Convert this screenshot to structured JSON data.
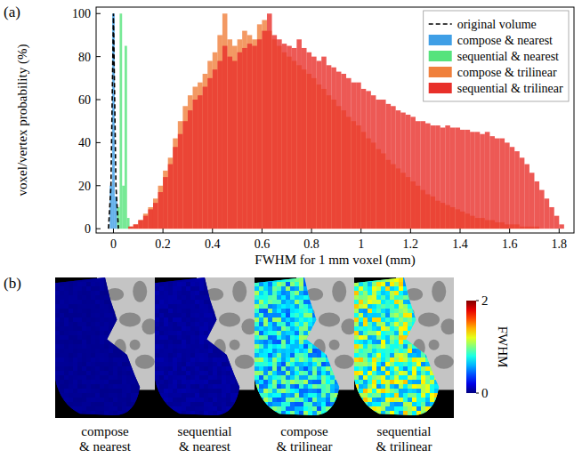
{
  "chart_data": [
    {
      "type": "histogram",
      "panel_label": "(a)",
      "x_label": "FWHM for 1 mm voxel (mm)",
      "y_label": "voxel/vertex probability (%)",
      "xlim": [
        -0.07,
        1.86
      ],
      "ylim": [
        -2,
        103
      ],
      "xticks": [
        0,
        0.2,
        0.4,
        0.6,
        0.8,
        1,
        1.2,
        1.4,
        1.6,
        1.8
      ],
      "yticks": [
        0,
        20,
        40,
        60,
        80,
        100
      ],
      "legend": "upper right",
      "series": [
        {
          "name": "original volume",
          "type": "line",
          "line_style": "dashed",
          "color": "#000000",
          "x": [
            -0.02,
            -0.01,
            0,
            0.01,
            0.02
          ],
          "values": [
            0,
            20,
            100,
            20,
            0
          ]
        },
        {
          "name": "compose & nearest",
          "type": "histogram",
          "color": "#3f9fe6",
          "bins": [
            -0.015,
            -0.005,
            0.005,
            0.015
          ],
          "values": [
            20,
            100,
            15
          ]
        },
        {
          "name": "sequential & nearest",
          "type": "histogram",
          "color": "#56e37c",
          "bins": [
            0.015,
            0.025,
            0.035,
            0.045,
            0.055,
            0.065
          ],
          "values": [
            10,
            100,
            20,
            85,
            5
          ]
        },
        {
          "name": "compose & trilinear",
          "type": "histogram",
          "color": "#f0803c",
          "bins": [
            0.06,
            0.08,
            0.1,
            0.12,
            0.14,
            0.16,
            0.18,
            0.2,
            0.22,
            0.24,
            0.26,
            0.28,
            0.3,
            0.32,
            0.34,
            0.36,
            0.38,
            0.4,
            0.42,
            0.44,
            0.46,
            0.48,
            0.5,
            0.52,
            0.54,
            0.56,
            0.58,
            0.6,
            0.62,
            0.64,
            0.66,
            0.68,
            0.7,
            0.72,
            0.74,
            0.76,
            0.78,
            0.8,
            0.82,
            0.84,
            0.86,
            0.88,
            0.9,
            0.92,
            0.94,
            0.96,
            0.98,
            1,
            1.02,
            1.04,
            1.06,
            1.08,
            1.1,
            1.12,
            1.14,
            1.16,
            1.18,
            1.2,
            1.22,
            1.24,
            1.26,
            1.28,
            1.3,
            1.32,
            1.34,
            1.36,
            1.38,
            1.4,
            1.42,
            1.44,
            1.46,
            1.48,
            1.5,
            1.52,
            1.54,
            1.56,
            1.58,
            1.6,
            1.62,
            1.64,
            1.66,
            1.68,
            1.7,
            1.72,
            1.74,
            1.76,
            1.78,
            1.8,
            1.82
          ],
          "values": [
            1,
            2,
            4,
            7,
            10,
            14,
            20,
            27,
            33,
            42,
            50,
            57,
            62,
            66,
            68,
            72,
            78,
            82,
            90,
            100,
            88,
            85,
            88,
            92,
            90,
            88,
            95,
            97,
            92,
            88,
            85,
            82,
            80,
            78,
            76,
            74,
            72,
            70,
            67,
            65,
            62,
            60,
            57,
            55,
            52,
            50,
            48,
            45,
            42,
            40,
            37,
            35,
            32,
            30,
            28,
            26,
            24,
            22,
            20,
            18,
            16,
            15,
            13,
            12,
            11,
            10,
            9,
            8,
            7,
            6,
            5,
            5,
            4,
            4,
            3,
            3,
            2,
            2,
            2,
            1,
            1,
            1,
            1,
            0,
            0,
            0,
            0,
            0
          ]
        },
        {
          "name": "sequential & trilinear",
          "type": "histogram",
          "color": "#e8302a",
          "bins": [
            0.06,
            0.08,
            0.1,
            0.12,
            0.14,
            0.16,
            0.18,
            0.2,
            0.22,
            0.24,
            0.26,
            0.28,
            0.3,
            0.32,
            0.34,
            0.36,
            0.38,
            0.4,
            0.42,
            0.44,
            0.46,
            0.48,
            0.5,
            0.52,
            0.54,
            0.56,
            0.58,
            0.6,
            0.62,
            0.64,
            0.66,
            0.68,
            0.7,
            0.72,
            0.74,
            0.76,
            0.78,
            0.8,
            0.82,
            0.84,
            0.86,
            0.88,
            0.9,
            0.92,
            0.94,
            0.96,
            0.98,
            1,
            1.02,
            1.04,
            1.06,
            1.08,
            1.1,
            1.12,
            1.14,
            1.16,
            1.18,
            1.2,
            1.22,
            1.24,
            1.26,
            1.28,
            1.3,
            1.32,
            1.34,
            1.36,
            1.38,
            1.4,
            1.42,
            1.44,
            1.46,
            1.48,
            1.5,
            1.52,
            1.54,
            1.56,
            1.58,
            1.6,
            1.62,
            1.64,
            1.66,
            1.68,
            1.7,
            1.72,
            1.74,
            1.76,
            1.78,
            1.8,
            1.82
          ],
          "values": [
            1,
            2,
            4,
            6,
            9,
            12,
            17,
            24,
            30,
            38,
            44,
            50,
            55,
            60,
            62,
            66,
            70,
            74,
            78,
            85,
            80,
            78,
            82,
            84,
            86,
            85,
            88,
            92,
            100,
            90,
            88,
            86,
            85,
            84,
            88,
            84,
            82,
            80,
            78,
            80,
            76,
            75,
            73,
            72,
            70,
            68,
            68,
            65,
            64,
            62,
            60,
            60,
            58,
            57,
            55,
            54,
            53,
            52,
            50,
            50,
            49,
            48,
            48,
            47,
            48,
            47,
            47,
            46,
            46,
            45,
            45,
            44,
            45,
            43,
            42,
            42,
            40,
            38,
            36,
            33,
            30,
            26,
            22,
            18,
            14,
            10,
            6,
            2
          ]
        }
      ]
    },
    {
      "type": "surface_map",
      "panel_label": "(b)",
      "colorbar": {
        "label": "FWHM",
        "range": [
          0,
          2
        ],
        "ticks": [
          0,
          2
        ]
      },
      "maps": [
        {
          "label": "compose & nearest",
          "value": 0.04
        },
        {
          "label": "sequential & nearest",
          "value": 0.06
        },
        {
          "label": "compose & trilinear",
          "value": 0.75
        },
        {
          "label": "sequential & trilinear",
          "value": 0.95
        }
      ]
    }
  ]
}
